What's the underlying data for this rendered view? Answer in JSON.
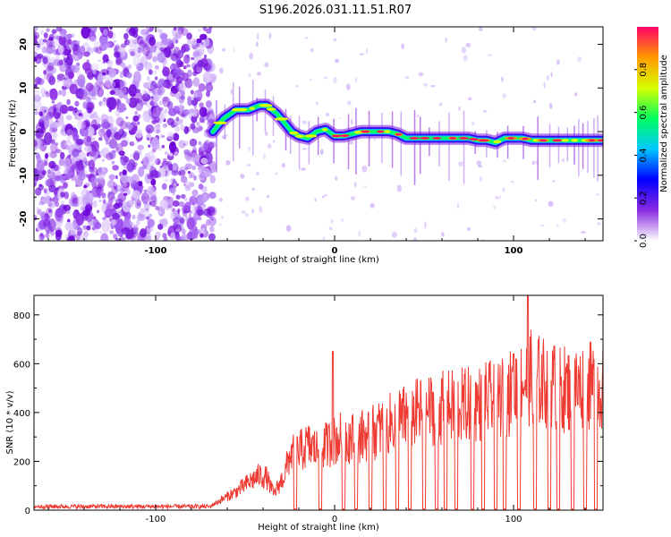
{
  "title": "S196.2026.031.11.51.R07",
  "chart_data": [
    {
      "type": "heatmap",
      "name": "spectrogram",
      "xlabel": "Height of straight line (km)",
      "ylabel": "Frequency (Hz)",
      "xlim": [
        -168,
        150
      ],
      "ylim": [
        -25,
        24
      ],
      "xticks": [
        -100,
        0,
        100
      ],
      "xtick_labels": [
        "-100",
        "0",
        "100"
      ],
      "yticks": [
        -20,
        -10,
        0,
        10,
        20
      ],
      "ytick_labels": [
        "-20",
        "-10",
        "0",
        "10",
        "20"
      ],
      "noise_region_x": [
        -168,
        -68
      ],
      "ridge": {
        "x": [
          -68,
          -62,
          -55,
          -48,
          -42,
          -38,
          -35,
          -32,
          -28,
          -24,
          -20,
          -15,
          -10,
          -5,
          0,
          5,
          10,
          15,
          20,
          25,
          30,
          35,
          40,
          45,
          50,
          55,
          60,
          65,
          70,
          75,
          80,
          85,
          90,
          95,
          100,
          105,
          110,
          115,
          120,
          125,
          130,
          135,
          140,
          145,
          150
        ],
        "y": [
          0,
          3,
          5,
          5,
          6,
          6,
          5,
          4,
          2,
          0,
          -1,
          -1.5,
          0,
          0.5,
          -1,
          -1,
          -0.5,
          0,
          0,
          0,
          0,
          -0.5,
          -1.5,
          -1.5,
          -1.5,
          -1.5,
          -1.5,
          -1.5,
          -1.5,
          -1.5,
          -2,
          -2,
          -2.5,
          -1.5,
          -1.5,
          -1.5,
          -2,
          -2,
          -2,
          -2,
          -2,
          -2,
          -2,
          -2,
          -2
        ]
      }
    },
    {
      "type": "line",
      "name": "snr",
      "xlabel": "Height of straight line (km)",
      "ylabel": "SNR (10 * v/v)",
      "xlim": [
        -168,
        150
      ],
      "ylim": [
        0,
        880
      ],
      "xticks": [
        -100,
        0,
        100
      ],
      "xtick_labels": [
        "-100",
        "0",
        "100"
      ],
      "yticks": [
        0,
        200,
        400,
        600,
        800
      ],
      "ytick_labels": [
        "0",
        "200",
        "400",
        "600",
        "800"
      ],
      "color": "#ee3a32",
      "series_envelope": {
        "x": [
          -168,
          -70,
          -62,
          -55,
          -48,
          -42,
          -38,
          -34,
          -28,
          -25,
          -20,
          -15,
          -10,
          -5,
          0,
          5,
          10,
          20,
          30,
          40,
          50,
          60,
          70,
          80,
          90,
          100,
          105,
          110,
          120,
          130,
          140,
          150
        ],
        "y": [
          15,
          15,
          50,
          80,
          120,
          150,
          140,
          70,
          150,
          240,
          250,
          280,
          260,
          280,
          300,
          320,
          310,
          330,
          370,
          400,
          430,
          440,
          450,
          460,
          480,
          510,
          560,
          570,
          540,
          520,
          530,
          540
        ]
      },
      "peaks": [
        {
          "x": 108,
          "y": 885
        },
        {
          "x": -1,
          "y": 650
        },
        {
          "x": 100,
          "y": 640
        }
      ],
      "dropouts_x": [
        -22,
        -8,
        5,
        12,
        20,
        28,
        35,
        42,
        50,
        57,
        62,
        68,
        77,
        83,
        90,
        95,
        103,
        112,
        120,
        125,
        133,
        140,
        146
      ]
    }
  ],
  "colorbar": {
    "label": "Normalized spectral amplitude",
    "ticks": [
      0.0,
      0.2,
      0.4,
      0.6,
      0.8
    ],
    "tick_labels": [
      "0.0",
      "0.2",
      "0.4",
      "0.6",
      "0.8"
    ],
    "range": [
      0,
      1
    ],
    "stops": [
      "#ffffff",
      "#8a2be2",
      "#0000ff",
      "#00c8ff",
      "#00ff60",
      "#d8ff00",
      "#ff9900",
      "#ff0066"
    ]
  }
}
